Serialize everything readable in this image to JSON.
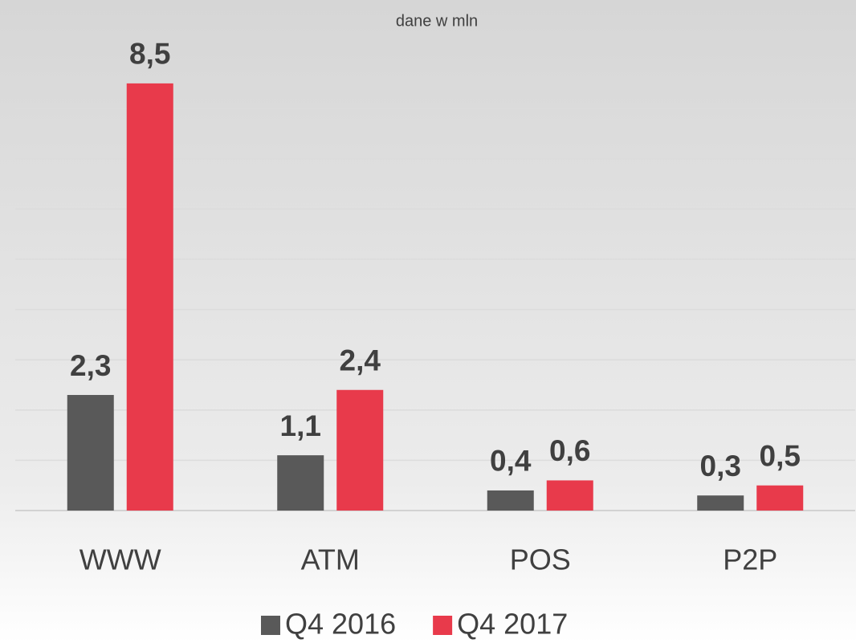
{
  "chart_data": {
    "type": "bar",
    "subtitle": "dane w mln",
    "categories": [
      "WWW",
      "ATM",
      "POS",
      "P2P"
    ],
    "series": [
      {
        "name": "Q4 2016",
        "color": "#595959",
        "values": [
          2.3,
          1.1,
          0.4,
          0.3
        ],
        "value_labels": [
          "2,3",
          "1,1",
          "0,4",
          "0,3"
        ]
      },
      {
        "name": "Q4 2017",
        "color": "#e83a4b",
        "values": [
          8.5,
          2.4,
          0.6,
          0.5
        ],
        "value_labels": [
          "8,5",
          "2,4",
          "0,6",
          "0,5"
        ]
      }
    ],
    "ylim": [
      0,
      10
    ],
    "yticks": [
      0,
      1,
      2,
      3,
      4,
      5,
      6,
      7,
      8
    ],
    "grid": true,
    "legend": "bottom"
  }
}
